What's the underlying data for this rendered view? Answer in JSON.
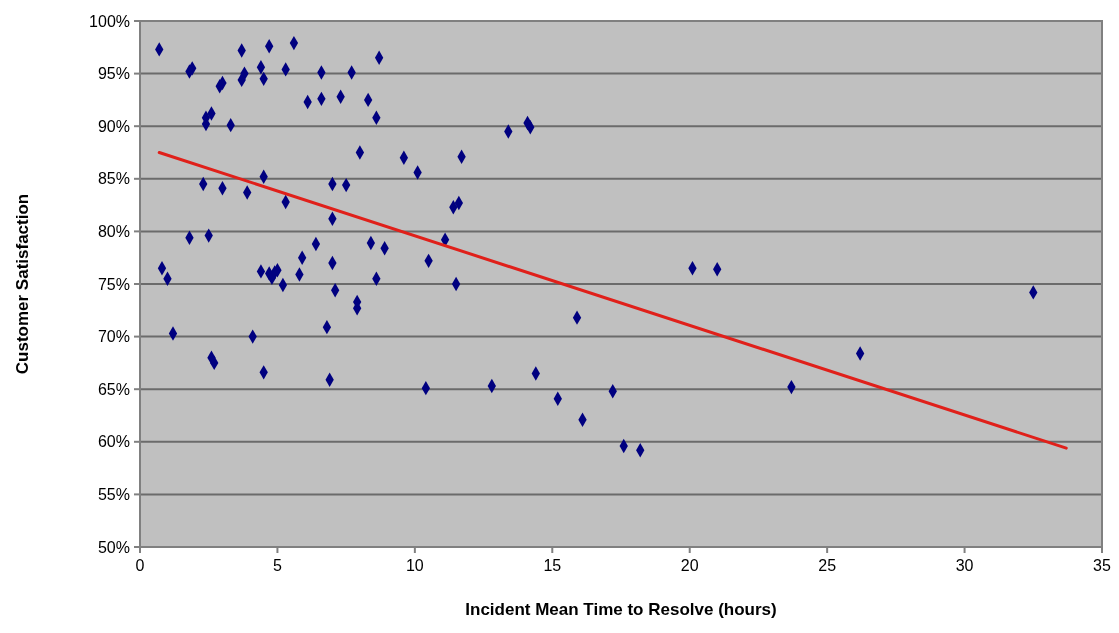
{
  "chart_data": {
    "type": "scatter",
    "xlabel": "Incident Mean Time to Resolve (hours)",
    "ylabel": "Customer Satisfaction",
    "xlim": [
      0,
      35
    ],
    "xticks": [
      0,
      5,
      10,
      15,
      20,
      25,
      30,
      35
    ],
    "ylim": [
      50,
      100
    ],
    "yticks": [
      {
        "value": 50,
        "label": "50%"
      },
      {
        "value": 55,
        "label": "55%"
      },
      {
        "value": 60,
        "label": "60%"
      },
      {
        "value": 65,
        "label": "65%"
      },
      {
        "value": 70,
        "label": "70%"
      },
      {
        "value": 75,
        "label": "75%"
      },
      {
        "value": 80,
        "label": "80%"
      },
      {
        "value": 85,
        "label": "85%"
      },
      {
        "value": 90,
        "label": "90%"
      },
      {
        "value": 95,
        "label": "95%"
      },
      {
        "value": 100,
        "label": "100%"
      }
    ],
    "grid": "y",
    "series": [
      {
        "color": "#000080",
        "marker": "diamond",
        "x": [
          0.7,
          0.8,
          1.0,
          1.2,
          1.8,
          1.9,
          1.8,
          2.3,
          2.4,
          2.4,
          2.6,
          2.5,
          2.6,
          2.7,
          2.9,
          3.0,
          3.0,
          3.3,
          3.7,
          3.7,
          3.8,
          3.9,
          4.1,
          4.4,
          4.5,
          4.4,
          4.5,
          4.5,
          4.7,
          4.7,
          4.8,
          4.9,
          5.0,
          5.2,
          5.3,
          5.3,
          5.6,
          5.8,
          5.9,
          6.1,
          6.4,
          6.6,
          6.6,
          6.8,
          6.9,
          7.0,
          7.0,
          7.0,
          7.1,
          7.3,
          7.5,
          7.7,
          7.9,
          7.9,
          8.0,
          8.3,
          8.4,
          8.6,
          8.6,
          8.7,
          8.9,
          9.6,
          10.1,
          10.4,
          10.5,
          11.1,
          11.4,
          11.5,
          11.6,
          11.7,
          12.8,
          13.4,
          14.1,
          14.2,
          14.4,
          15.2,
          15.9,
          16.1,
          17.2,
          17.6,
          18.2,
          20.1,
          21.0,
          23.7,
          26.2,
          32.5
        ],
        "values": [
          97.3,
          76.5,
          75.5,
          70.3,
          95.2,
          95.5,
          79.4,
          84.5,
          90.8,
          90.2,
          91.2,
          79.6,
          68,
          67.5,
          93.8,
          94.1,
          84.1,
          90.1,
          97.2,
          94.4,
          95,
          83.7,
          70,
          95.6,
          94.5,
          76.2,
          85.2,
          66.6,
          97.6,
          76,
          75.6,
          76.1,
          76.3,
          74.9,
          95.4,
          82.8,
          97.9,
          75.9,
          77.5,
          92.3,
          78.8,
          95.1,
          92.6,
          70.9,
          65.9,
          84.5,
          81.2,
          77,
          74.4,
          92.8,
          84.4,
          95.1,
          73.3,
          72.7,
          87.5,
          92.5,
          78.9,
          90.8,
          75.5,
          96.5,
          78.4,
          87,
          85.6,
          65.1,
          77.2,
          79.2,
          82.3,
          75,
          82.7,
          87.1,
          65.3,
          89.5,
          90.3,
          89.9,
          66.5,
          64.1,
          71.8,
          62.1,
          64.8,
          59.6,
          59.2,
          76.5,
          76.4,
          65.2,
          68.4,
          74.2
        ]
      },
      {
        "type": "line",
        "color": "#e0201a",
        "marker": "none",
        "line_style": "solid",
        "x": [
          0.7,
          33.7
        ],
        "values": [
          87.5,
          59.4
        ]
      }
    ]
  }
}
